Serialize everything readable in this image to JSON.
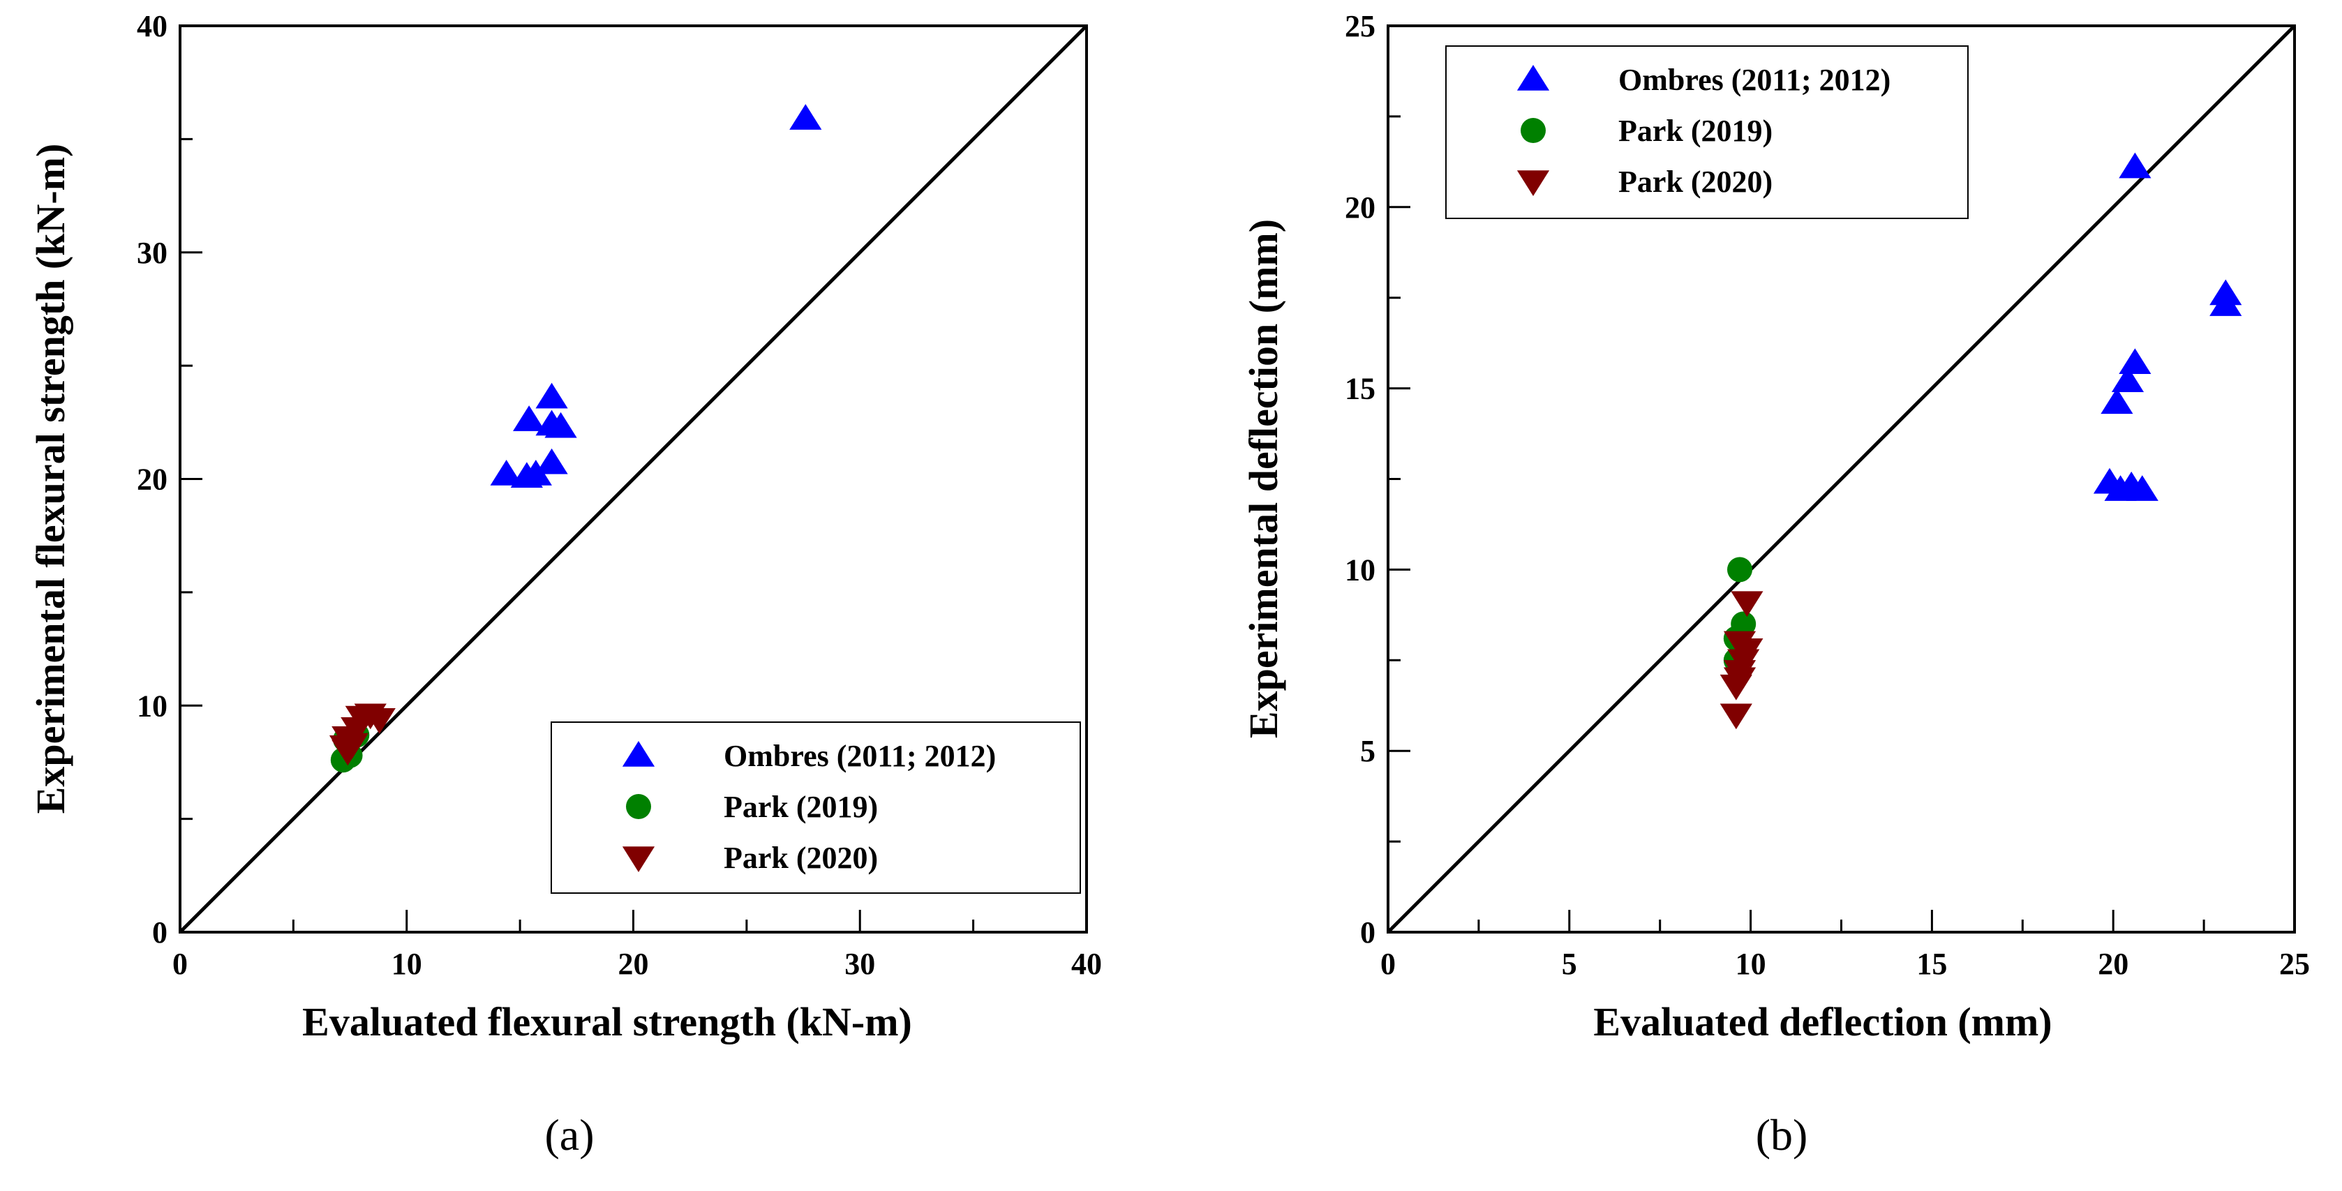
{
  "chart_data": [
    {
      "type": "scatter",
      "panel_label": "(a)",
      "xlabel": "Evaluated flexural strength (kN-m)",
      "ylabel": "Experimental flexural strength (kN-m)",
      "xlim": [
        0,
        40
      ],
      "ylim": [
        0,
        40
      ],
      "xticks": [
        0,
        10,
        20,
        30,
        40
      ],
      "yticks": [
        0,
        10,
        20,
        30,
        40
      ],
      "minor_step": 5,
      "reference_line": "y = x",
      "legend_position": "bottom-right",
      "series": [
        {
          "name": "Ombres (2011; 2012)",
          "marker": "triangle-up",
          "color": "#0000ff",
          "points": [
            [
              27.6,
              35.9
            ],
            [
              14.4,
              20.2
            ],
            [
              15.3,
              20.1
            ],
            [
              15.7,
              20.2
            ],
            [
              15.4,
              22.6
            ],
            [
              16.4,
              23.6
            ],
            [
              16.4,
              22.4
            ],
            [
              16.8,
              22.3
            ],
            [
              16.4,
              20.7
            ]
          ]
        },
        {
          "name": "Park (2019)",
          "marker": "circle",
          "color": "#008000",
          "points": [
            [
              7.2,
              7.6
            ],
            [
              7.5,
              7.8
            ],
            [
              7.8,
              8.7
            ],
            [
              7.3,
              8.5
            ]
          ]
        },
        {
          "name": "Park (2020)",
          "marker": "triangle-down",
          "color": "#800000",
          "points": [
            [
              7.4,
              8.0
            ],
            [
              7.6,
              8.3
            ],
            [
              7.4,
              8.6
            ],
            [
              7.8,
              9.0
            ],
            [
              8.0,
              9.5
            ],
            [
              8.4,
              9.6
            ],
            [
              8.8,
              9.4
            ],
            [
              7.3,
              8.2
            ]
          ]
        }
      ]
    },
    {
      "type": "scatter",
      "panel_label": "(b)",
      "xlabel": "Evaluated deflection (mm)",
      "ylabel": "Experimental deflection (mm)",
      "xlim": [
        0,
        25
      ],
      "ylim": [
        0,
        25
      ],
      "xticks": [
        0,
        5,
        10,
        15,
        20,
        25
      ],
      "yticks": [
        0,
        5,
        10,
        15,
        20,
        25
      ],
      "minor_step": 2.5,
      "reference_line": "y = x",
      "legend_position": "top-left",
      "series": [
        {
          "name": "Ombres (2011; 2012)",
          "marker": "triangle-up",
          "color": "#0000ff",
          "points": [
            [
              20.6,
              21.1
            ],
            [
              23.1,
              17.6
            ],
            [
              23.1,
              17.3
            ],
            [
              20.6,
              15.7
            ],
            [
              20.4,
              15.2
            ],
            [
              20.1,
              14.6
            ],
            [
              19.9,
              12.4
            ],
            [
              20.2,
              12.2
            ],
            [
              20.5,
              12.3
            ],
            [
              20.8,
              12.2
            ]
          ]
        },
        {
          "name": "Park (2019)",
          "marker": "circle",
          "color": "#008000",
          "points": [
            [
              9.7,
              10.0
            ],
            [
              9.8,
              8.5
            ],
            [
              9.6,
              8.1
            ],
            [
              9.6,
              7.5
            ]
          ]
        },
        {
          "name": "Park (2020)",
          "marker": "triangle-down",
          "color": "#800000",
          "points": [
            [
              9.9,
              9.1
            ],
            [
              9.7,
              8.0
            ],
            [
              9.9,
              7.8
            ],
            [
              9.8,
              7.5
            ],
            [
              9.7,
              7.2
            ],
            [
              9.7,
              7.0
            ],
            [
              9.6,
              6.8
            ],
            [
              9.6,
              6.0
            ]
          ]
        }
      ]
    }
  ]
}
